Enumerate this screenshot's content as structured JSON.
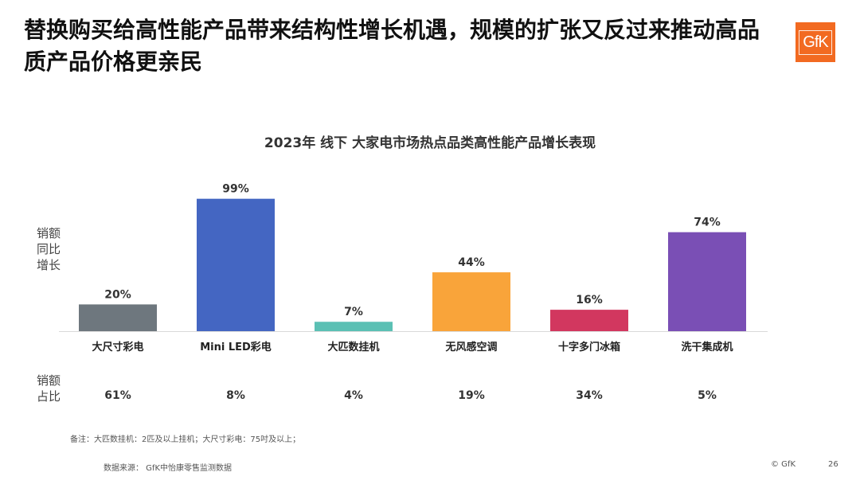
{
  "slide": {
    "title": "替换购买给高性能产品带来结构性增长机遇，规模的扩张又反过来推动高品质产品价格更亲民",
    "logo_text": "GfK",
    "note": "备注：大匹数挂机：2匹及以上挂机；大尺寸彩电：75吋及以上；",
    "source": "数据来源： GfK中怡康零售监测数据",
    "copyright": "© GfK",
    "page_number": "26"
  },
  "chart_data": {
    "type": "bar",
    "title": "2023年 线下 大家电市场热点品类高性能产品增长表现",
    "ylabel": "销额同比增长",
    "ylabel_lines": [
      "销额",
      "同比",
      "增长"
    ],
    "share_label": "销额占比",
    "share_label_lines": [
      "销额",
      "占比"
    ],
    "categories": [
      "大尺寸彩电",
      "Mini LED彩电",
      "大匹数挂机",
      "无风感空调",
      "十字多门冰箱",
      "洗干集成机"
    ],
    "values": [
      20,
      99,
      7,
      44,
      16,
      74
    ],
    "value_labels": [
      "20%",
      "99%",
      "7%",
      "44%",
      "16%",
      "74%"
    ],
    "colors": [
      "#6E777E",
      "#4466C2",
      "#5BC0B4",
      "#F9A43A",
      "#D2375F",
      "#7A4FB5"
    ],
    "share_values": [
      61,
      8,
      4,
      19,
      34,
      5
    ],
    "share_labels": [
      "61%",
      "8%",
      "4%",
      "19%",
      "34%",
      "5%"
    ],
    "ylim": [
      0,
      100
    ],
    "grid": false,
    "legend": "none"
  }
}
